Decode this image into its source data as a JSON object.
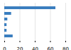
{
  "chart_data": {
    "type": "bar",
    "orientation": "horizontal",
    "categories": [
      null,
      null,
      null,
      null,
      null,
      null
    ],
    "values": [
      67,
      9,
      4,
      3,
      3,
      11
    ],
    "color": "#3a7ebf",
    "xlim": [
      0,
      80
    ],
    "xticks": [
      0,
      20,
      40,
      60,
      80
    ],
    "grid": true,
    "tick_labels": "x"
  }
}
